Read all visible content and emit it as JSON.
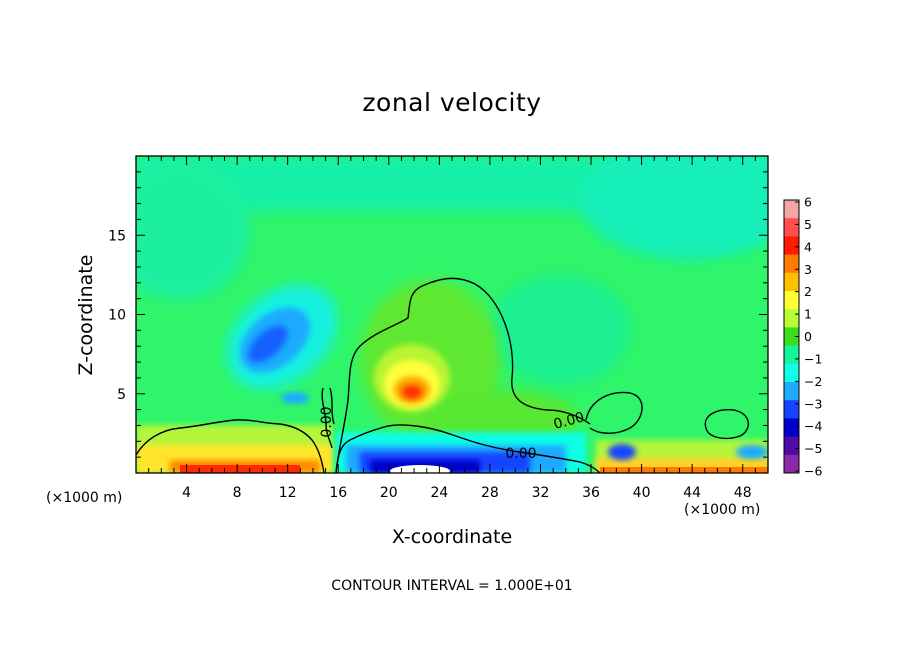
{
  "chart_data": {
    "type": "heatmap",
    "title": "zonal velocity",
    "xlabel": "X-coordinate",
    "ylabel": "Z-coordinate",
    "x_unit": "(×1000 m)",
    "x_unit_repeat": "(×1000 m)",
    "xlim": [
      0,
      50
    ],
    "ylim": [
      0,
      20
    ],
    "x_ticks": [
      "4",
      "8",
      "12",
      "16",
      "20",
      "24",
      "28",
      "32",
      "36",
      "40",
      "44",
      "48"
    ],
    "y_ticks": [
      "5",
      "10",
      "15"
    ],
    "contour_labels": [
      "0.00",
      "0.00",
      "0.00"
    ],
    "contour_interval_note": "CONTOUR INTERVAL = 1.000E+01",
    "colorbar": {
      "ticks": [
        "6",
        "5",
        "4",
        "3",
        "2",
        "1",
        "0",
        "−1",
        "−2",
        "−3",
        "−4",
        "−5",
        "−6"
      ],
      "colors": [
        "#f4a6a6",
        "#ff4f4f",
        "#ff1a00",
        "#ff7a00",
        "#ffc000",
        "#ffff33",
        "#b7ff33",
        "#3ddc1e",
        "#15f59a",
        "#10ffe6",
        "#1eaaff",
        "#1744ff",
        "#0000c8",
        "#4f0aa8",
        "#8a2aa8"
      ]
    }
  }
}
